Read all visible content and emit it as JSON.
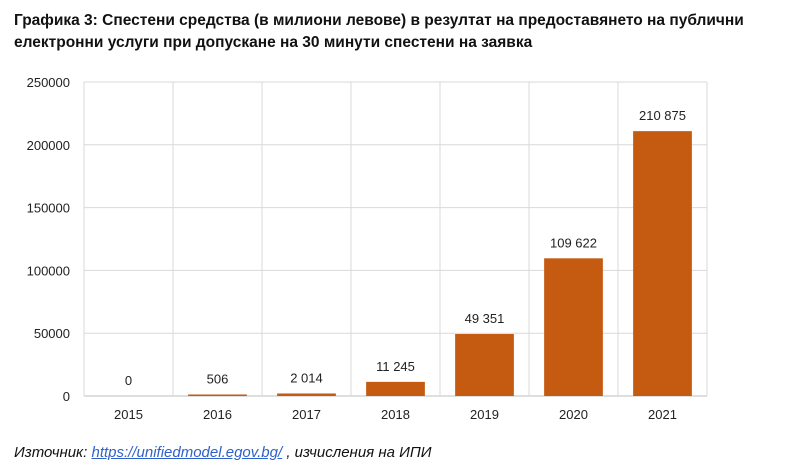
{
  "title": "Графика 3: Спестени средства (в милиони левове) в резултат на предоставянето на публични електронни услуги при допускане на 30 минути спестени на заявка",
  "source": {
    "label": "Източник:",
    "link_text": "https://unifiedmodel.egov.bg/",
    "suffix": ", изчисления на ИПИ"
  },
  "colors": {
    "bar": "#c55a11",
    "grid": "#d9d9d9",
    "axis": "#bfbfbf",
    "link": "#2f62c9"
  },
  "chart_data": {
    "type": "bar",
    "categories": [
      "2015",
      "2016",
      "2017",
      "2018",
      "2019",
      "2020",
      "2021"
    ],
    "values": [
      0,
      506,
      2014,
      11245,
      49351,
      109622,
      210875
    ],
    "data_labels": [
      "0",
      "506",
      "2 014",
      "11 245",
      "49 351",
      "109 622",
      "210 875"
    ],
    "y_ticks": [
      "0",
      "50000",
      "100000",
      "150000",
      "200000",
      "250000"
    ],
    "ylim": [
      0,
      250000
    ],
    "grid": true,
    "legend": "none",
    "xlabel": "",
    "ylabel": ""
  }
}
